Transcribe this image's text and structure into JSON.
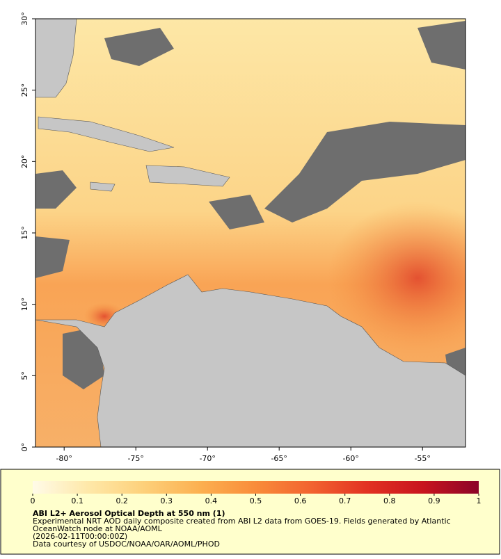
{
  "chart_data": {
    "type": "map",
    "xlim": [
      -82,
      -52
    ],
    "ylim": [
      0,
      30
    ],
    "xticks": [
      {
        "value": -80,
        "label": "-80°"
      },
      {
        "value": -75,
        "label": "-75°"
      },
      {
        "value": -70,
        "label": "-70°"
      },
      {
        "value": -65,
        "label": "-65°"
      },
      {
        "value": -60,
        "label": "-60°"
      },
      {
        "value": -55,
        "label": "-55°"
      }
    ],
    "yticks": [
      {
        "value": 0,
        "label": "0°"
      },
      {
        "value": 5,
        "label": "5°"
      },
      {
        "value": 10,
        "label": "10°"
      },
      {
        "value": 15,
        "label": "15°"
      },
      {
        "value": 20,
        "label": "20°"
      },
      {
        "value": 25,
        "label": "25°"
      },
      {
        "value": 30,
        "label": "30°"
      }
    ],
    "colorbar": {
      "lim": [
        0,
        1
      ],
      "ticks": [
        0,
        0.1,
        0.2,
        0.3,
        0.4,
        0.5,
        0.6,
        0.7,
        0.8,
        0.9,
        1
      ],
      "colors": [
        "#fffbe8",
        "#fee8a8",
        "#fdd07a",
        "#fcb050",
        "#f98c3a",
        "#f26330",
        "#e23222",
        "#c8141e",
        "#8c0428"
      ]
    }
  },
  "caption": {
    "title": "ABI L2+ Aerosol Optical Depth at 550 nm (1)",
    "lines": [
      "Experimental NRT AOD daily composite created from ABI L2 data from GOES-19. Fields generated by Atlantic",
      "OceanWatch node at NOAA/AOML",
      "(2026-02-11T00:00:00Z)",
      "Data courtesy of USDOC/NOAA/OAR/AOML/PHOD"
    ]
  }
}
